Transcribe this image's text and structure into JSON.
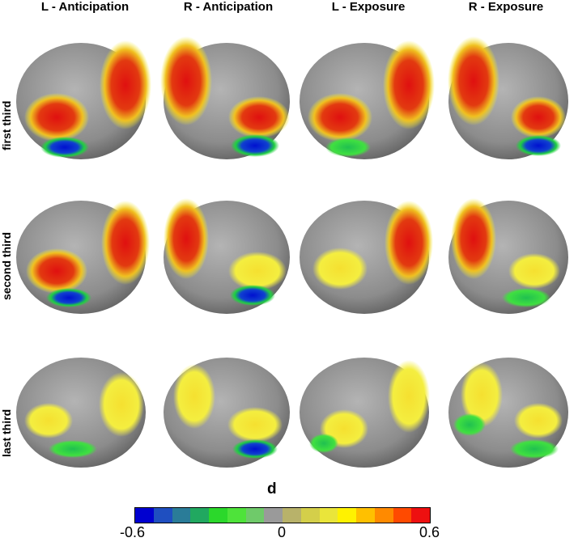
{
  "columns": [
    "L - Anticipation",
    "R - Anticipation",
    "L - Exposure",
    "R - Exposure"
  ],
  "rows": [
    "first third",
    "second third",
    "last third"
  ],
  "colorbar": {
    "title": "d",
    "ticks": [
      "-0.6",
      "0",
      "0.6"
    ],
    "colors": [
      "#0000d0",
      "#1f4fc0",
      "#2a7c98",
      "#21a860",
      "#2bd82b",
      "#4ee33a",
      "#6fca6a",
      "#9a9a9a",
      "#b8b26a",
      "#d4cf4a",
      "#eae53a",
      "#fff200",
      "#ffc000",
      "#ff8a00",
      "#ff4a00",
      "#ee1010"
    ]
  }
}
